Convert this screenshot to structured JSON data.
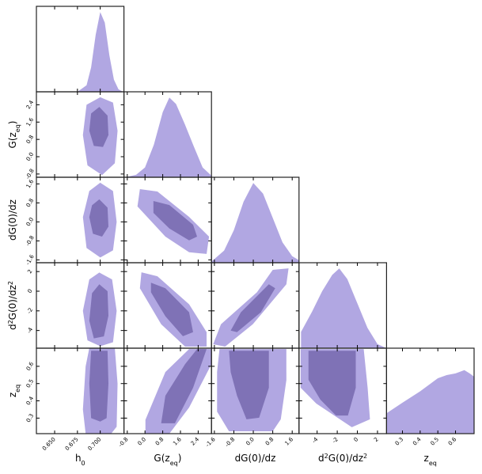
{
  "chart_data": {
    "type": "corner",
    "colors": {
      "outer": "#b1a7e2",
      "inner": "#7f72b6",
      "frame": "#222222"
    },
    "params": [
      {
        "label": [
          {
            "text": "h"
          },
          {
            "text": "0",
            "sub": true
          }
        ],
        "lim": [
          0.63,
          0.726
        ],
        "ticks": [
          {
            "value": 0.65,
            "label": "0.650"
          },
          {
            "value": 0.675,
            "label": "0.675"
          },
          {
            "value": 0.7,
            "label": "0.700"
          }
        ]
      },
      {
        "label": [
          {
            "text": "G(z"
          },
          {
            "text": "eq",
            "sub": true
          },
          {
            "text": ")"
          }
        ],
        "lim": [
          -0.95,
          3.0
        ],
        "ticks": [
          -0.8,
          {
            "value": 0,
            "label": "0.0"
          },
          0.8,
          1.6,
          2.4
        ]
      },
      {
        "label": [
          {
            "text": "dG(0)/dz"
          }
        ],
        "lim": [
          -1.72,
          1.88
        ],
        "ticks": [
          -1.6,
          -0.8,
          {
            "value": 0,
            "label": "0.0"
          },
          0.8,
          1.6
        ]
      },
      {
        "label": [
          {
            "text": "d"
          },
          {
            "text": "2",
            "sup": true
          },
          {
            "text": "G(0)/dz"
          },
          {
            "text": "2",
            "sup": true
          }
        ],
        "lim": [
          -5.8,
          2.9
        ],
        "ticks": [
          -4,
          -2,
          0,
          2
        ]
      },
      {
        "label": [
          {
            "text": "z"
          },
          {
            "text": "eq",
            "sub": true
          }
        ],
        "lim": [
          0.21,
          0.705
        ],
        "ticks": [
          0.3,
          0.4,
          0.5,
          0.6
        ]
      }
    ],
    "marginal_ylim": [
      0,
      1.05
    ],
    "marginals": [
      {
        "x": [
          0.675,
          0.685,
          0.69,
          0.695,
          0.7,
          0.705,
          0.71,
          0.715,
          0.72,
          0.725
        ],
        "values": [
          0,
          0.08,
          0.3,
          0.7,
          0.98,
          0.85,
          0.45,
          0.15,
          0.03,
          0
        ]
      },
      {
        "x": [
          -0.9,
          -0.4,
          0,
          0.4,
          0.8,
          1.1,
          1.4,
          1.8,
          2.2,
          2.6,
          3.0
        ],
        "values": [
          0,
          0.03,
          0.12,
          0.4,
          0.8,
          0.98,
          0.9,
          0.65,
          0.38,
          0.12,
          0.02
        ]
      },
      {
        "x": [
          -1.7,
          -1.2,
          -0.8,
          -0.4,
          0,
          0.4,
          0.8,
          1.2,
          1.6,
          1.88
        ],
        "values": [
          0.02,
          0.15,
          0.4,
          0.75,
          0.98,
          0.85,
          0.55,
          0.25,
          0.08,
          0.03
        ]
      },
      {
        "x": [
          -5.6,
          -4.5,
          -3.5,
          -2.5,
          -1.8,
          -1,
          0,
          1,
          2,
          2.9
        ],
        "values": [
          0.2,
          0.45,
          0.7,
          0.9,
          0.98,
          0.85,
          0.55,
          0.25,
          0.05,
          0
        ]
      },
      {
        "x": [
          0.21,
          0.3,
          0.4,
          0.5,
          0.55,
          0.6,
          0.65,
          0.68,
          0.705
        ],
        "values": [
          0.25,
          0.38,
          0.52,
          0.68,
          0.72,
          0.74,
          0.78,
          0.74,
          0.7
        ]
      }
    ],
    "contours": [
      {
        "xparam": 0,
        "yparam": 1,
        "levels": [
          {
            "x": [
              0.7,
              0.714,
              0.719,
              0.716,
              0.702,
              0.686,
              0.681,
              0.685
            ],
            "y": [
              2.75,
              2.5,
              1.2,
              -0.3,
              -0.85,
              -0.4,
              1.0,
              2.4
            ]
          },
          {
            "x": [
              0.699,
              0.708,
              0.709,
              0.703,
              0.693,
              0.688,
              0.69
            ],
            "y": [
              2.3,
              1.9,
              1.0,
              0.45,
              0.5,
              1.2,
              2.0
            ]
          }
        ]
      },
      {
        "xparam": 0,
        "yparam": 2,
        "levels": [
          {
            "x": [
              0.7,
              0.714,
              0.718,
              0.714,
              0.7,
              0.685,
              0.681,
              0.688
            ],
            "y": [
              1.65,
              1.3,
              0,
              -1.2,
              -1.5,
              -1.1,
              0.2,
              1.3
            ]
          },
          {
            "x": [
              0.699,
              0.708,
              0.709,
              0.702,
              0.692,
              0.688,
              0.691
            ],
            "y": [
              0.95,
              0.6,
              -0.2,
              -0.62,
              -0.5,
              0.2,
              0.7
            ]
          }
        ]
      },
      {
        "xparam": 0,
        "yparam": 3,
        "levels": [
          {
            "x": [
              0.699,
              0.713,
              0.718,
              0.714,
              0.7,
              0.686,
              0.681,
              0.688
            ],
            "y": [
              1.9,
              1.2,
              -2,
              -5.2,
              -5.6,
              -5,
              -2,
              1.2
            ]
          },
          {
            "x": [
              0.699,
              0.708,
              0.709,
              0.704,
              0.693,
              0.688,
              0.691
            ],
            "y": [
              0.7,
              0,
              -2.5,
              -4.6,
              -4.8,
              -3,
              -0.2
            ]
          }
        ]
      },
      {
        "xparam": 0,
        "yparam": 4,
        "levels": [
          {
            "x": [
              0.688,
              0.716,
              0.719,
              0.718,
              0.712,
              0.684,
              0.681,
              0.684
            ],
            "y": [
              0.705,
              0.705,
              0.5,
              0.25,
              0.21,
              0.21,
              0.35,
              0.6
            ]
          },
          {
            "x": [
              0.69,
              0.708,
              0.709,
              0.707,
              0.7,
              0.69,
              0.688
            ],
            "y": [
              0.69,
              0.69,
              0.5,
              0.3,
              0.28,
              0.3,
              0.5
            ]
          }
        ]
      },
      {
        "xparam": 1,
        "yparam": 2,
        "levels": [
          {
            "x": [
              -0.23,
              0.56,
              1.99,
              2.89,
              2.78,
              1.99,
              0.92,
              -0.34
            ],
            "y": [
              1.38,
              1.28,
              0.21,
              -0.62,
              -1.35,
              -1.28,
              -0.62,
              0.65
            ]
          },
          {
            "x": [
              0.38,
              1.1,
              2.17,
              2.35,
              1.99,
              1.1,
              0.38
            ],
            "y": [
              0.88,
              0.71,
              -0.12,
              -0.62,
              -0.78,
              -0.28,
              0.38
            ]
          }
        ]
      },
      {
        "xparam": 1,
        "yparam": 3,
        "levels": [
          {
            "x": [
              -0.16,
              0.56,
              1.99,
              2.78,
              2.78,
              1.81,
              0.73,
              -0.23
            ],
            "y": [
              1.92,
              1.52,
              -1.33,
              -4.17,
              -5.64,
              -5.64,
              -3.36,
              0.3
            ]
          },
          {
            "x": [
              0.27,
              0.92,
              1.99,
              2.17,
              1.71,
              0.92,
              0.27
            ],
            "y": [
              0.87,
              0.3,
              -2.14,
              -4.17,
              -4.58,
              -2.55,
              -0.11
            ]
          }
        ]
      },
      {
        "xparam": 1,
        "yparam": 4,
        "levels": [
          {
            "x": [
              1.99,
              3.0,
              3.0,
              1.99,
              1.1,
              0.02,
              0.02,
              0.92
            ],
            "y": [
              0.7,
              0.7,
              0.613,
              0.361,
              0.21,
              0.21,
              0.29,
              0.567
            ]
          },
          {
            "x": [
              2.35,
              2.78,
              2.17,
              1.35,
              0.73,
              0.92,
              1.81
            ],
            "y": [
              0.7,
              0.7,
              0.476,
              0.27,
              0.27,
              0.43,
              0.613
            ]
          }
        ]
      },
      {
        "xparam": 2,
        "yparam": 3,
        "levels": [
          {
            "x": [
              0.8,
              1.45,
              1.36,
              -0.02,
              -1.16,
              -1.65,
              -1.33,
              0.15
            ],
            "y": [
              2.17,
              2.33,
              0.7,
              -3.36,
              -5.64,
              -5.4,
              -3.36,
              -0.11
            ]
          },
          {
            "x": [
              0.64,
              0.9,
              0.31,
              -0.67,
              -0.93,
              -0.51,
              0.31
            ],
            "y": [
              0.7,
              0.3,
              -2.14,
              -4.17,
              -4.01,
              -2.14,
              -0.11
            ]
          }
        ]
      },
      {
        "xparam": 2,
        "yparam": 4,
        "levels": [
          {
            "x": [
              -1.39,
              1.36,
              1.36,
              1.13,
              0.8,
              -1.0,
              -1.49,
              -1.49
            ],
            "y": [
              0.7,
              0.7,
              0.52,
              0.293,
              0.224,
              0.224,
              0.338,
              0.567
            ]
          },
          {
            "x": [
              -1.0,
              0.64,
              0.64,
              0.24,
              -0.28,
              -0.67,
              -0.93
            ],
            "y": [
              0.69,
              0.69,
              0.476,
              0.302,
              0.293,
              0.43,
              0.567
            ]
          }
        ]
      },
      {
        "xparam": 3,
        "yparam": 4,
        "levels": [
          {
            "x": [
              -5.64,
              0.63,
              1.02,
              1.25,
              -0.55,
              -4.08,
              -5.64
            ],
            "y": [
              0.7,
              0.7,
              0.476,
              0.293,
              0.247,
              0.384,
              0.476
            ]
          },
          {
            "x": [
              -4.86,
              -0.16,
              -0.16,
              -0.94,
              -2.12,
              -3.68,
              -4.86
            ],
            "y": [
              0.69,
              0.69,
              0.476,
              0.315,
              0.315,
              0.407,
              0.522
            ]
          }
        ]
      }
    ]
  }
}
